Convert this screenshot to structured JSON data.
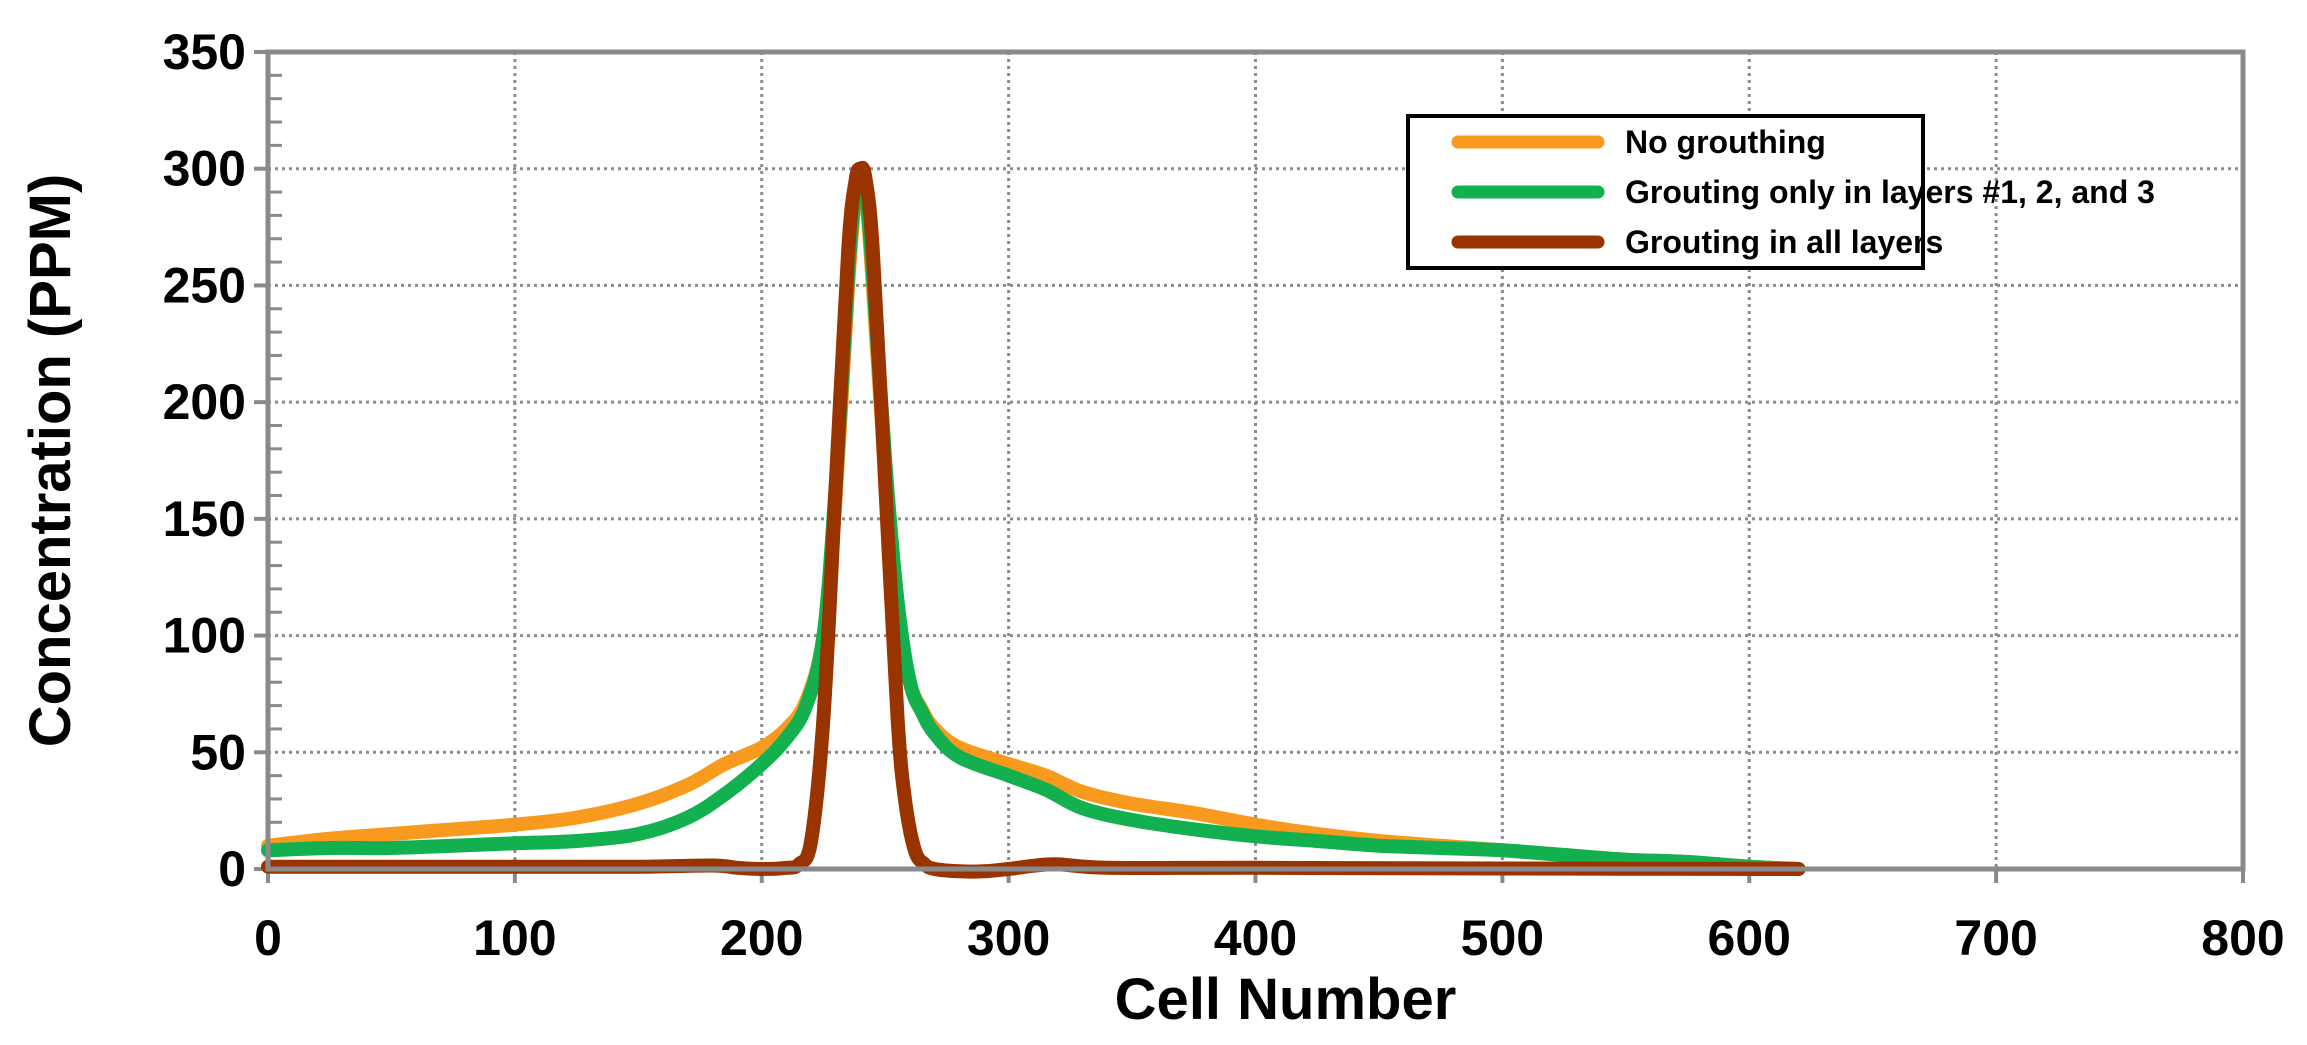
{
  "chart_data": {
    "type": "line",
    "title": "",
    "xlabel": "Cell Number",
    "ylabel": "Concentration (PPM)",
    "xlim": [
      0,
      800
    ],
    "ylim": [
      0,
      350
    ],
    "xticks": [
      0,
      100,
      200,
      300,
      400,
      500,
      600,
      700,
      800
    ],
    "yticks": [
      0,
      50,
      100,
      150,
      200,
      250,
      300,
      350
    ],
    "grid": true,
    "legend_position": "top-right",
    "series": [
      {
        "name": "No grouthing",
        "color": "#F79A1E",
        "x": [
          0,
          25,
          50,
          75,
          100,
          125,
          150,
          170,
          185,
          200,
          210,
          218,
          225,
          230,
          235,
          238,
          240,
          242,
          245,
          250,
          255,
          260,
          265,
          270,
          280,
          300,
          315,
          330,
          350,
          375,
          400,
          425,
          450,
          475,
          500,
          525,
          550,
          575,
          600,
          620
        ],
        "y": [
          10,
          13,
          15,
          17,
          19,
          22,
          28,
          36,
          45,
          52,
          60,
          72,
          100,
          160,
          250,
          290,
          300,
          292,
          250,
          170,
          110,
          80,
          68,
          60,
          52,
          45,
          40,
          33,
          28,
          24,
          19,
          15,
          12,
          10,
          8,
          6,
          4,
          3,
          1,
          0
        ]
      },
      {
        "name": "Grouting only in layers #1, 2, and 3",
        "color": "#12B04F",
        "x": [
          0,
          25,
          50,
          75,
          100,
          125,
          150,
          170,
          185,
          200,
          210,
          218,
          225,
          230,
          235,
          238,
          240,
          242,
          245,
          250,
          255,
          260,
          265,
          270,
          280,
          300,
          315,
          330,
          350,
          375,
          400,
          425,
          450,
          475,
          500,
          525,
          550,
          575,
          600,
          620
        ],
        "y": [
          8,
          9,
          9,
          10,
          11,
          12,
          15,
          22,
          32,
          45,
          56,
          70,
          100,
          165,
          255,
          292,
          300,
          292,
          255,
          175,
          115,
          80,
          67,
          58,
          48,
          40,
          34,
          26,
          21,
          17,
          14,
          12,
          10,
          9,
          8,
          6,
          4,
          3,
          1,
          0
        ]
      },
      {
        "name": "Grouting in all layers",
        "color": "#993300",
        "x": [
          0,
          50,
          100,
          150,
          180,
          190,
          200,
          210,
          215,
          220,
          225,
          230,
          235,
          238,
          240,
          242,
          245,
          250,
          255,
          258,
          262,
          266,
          270,
          280,
          290,
          300,
          318,
          340,
          400,
          500,
          620
        ],
        "y": [
          1,
          1,
          1,
          1,
          1.5,
          0.5,
          0,
          0.5,
          2,
          12,
          65,
          165,
          265,
          295,
          300,
          296,
          265,
          165,
          65,
          30,
          8,
          2,
          0,
          -1,
          -1,
          0,
          2,
          0.5,
          0.5,
          0.2,
          0
        ]
      }
    ]
  }
}
